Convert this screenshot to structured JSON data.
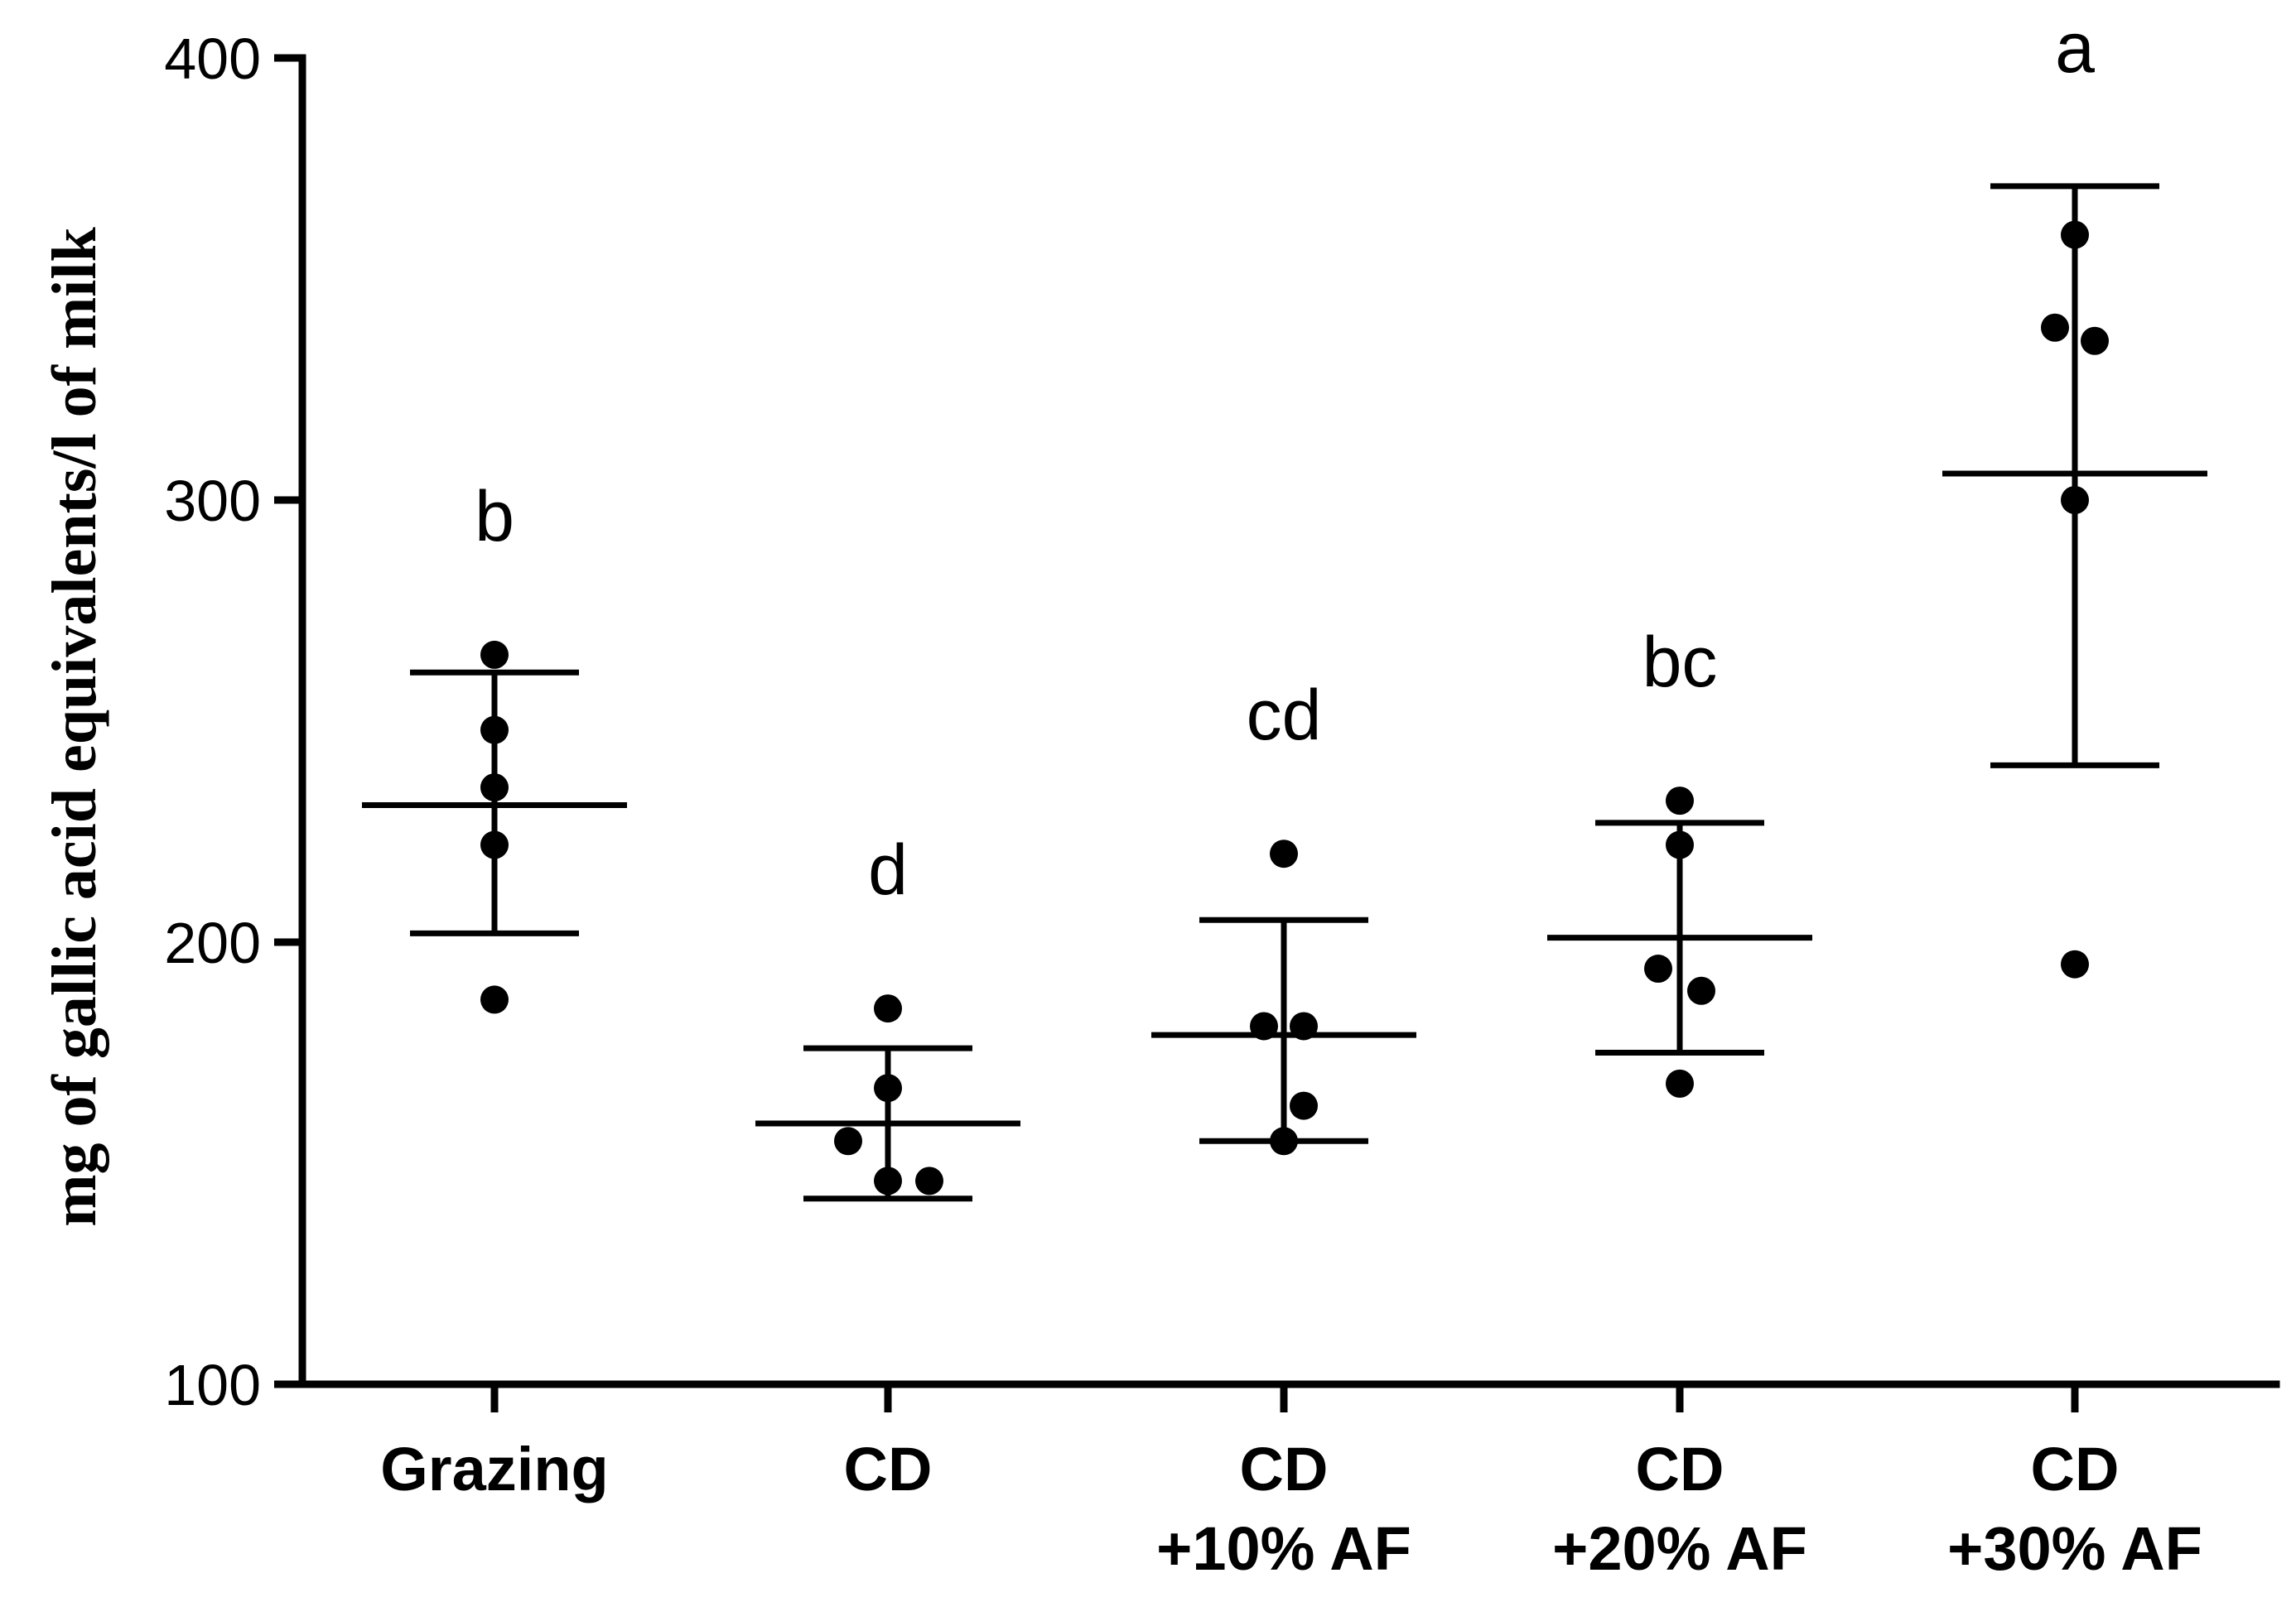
{
  "chart_data": {
    "type": "scatter",
    "title": "",
    "xlabel": "",
    "ylabel": "mg of gallic acid equivalents/l of milk",
    "ylim": [
      100,
      400
    ],
    "yticks": [
      100,
      200,
      300,
      400
    ],
    "grid": false,
    "categories": [
      {
        "lines": [
          "Grazing"
        ]
      },
      {
        "lines": [
          "CD"
        ]
      },
      {
        "lines": [
          "CD",
          "+10% AF"
        ]
      },
      {
        "lines": [
          "CD",
          "+20% AF"
        ]
      },
      {
        "lines": [
          "CD",
          "+30% AF"
        ]
      }
    ],
    "groups": [
      {
        "points": [
          265,
          248,
          235,
          222,
          187
        ],
        "mean": 231,
        "sd_low": 202,
        "sd_high": 261,
        "letter": "b"
      },
      {
        "points": [
          185,
          167,
          155,
          146,
          146
        ],
        "mean": 159,
        "sd_low": 142,
        "sd_high": 176,
        "letter": "d"
      },
      {
        "points": [
          220,
          181,
          181,
          163,
          155
        ],
        "mean": 179,
        "sd_low": 155,
        "sd_high": 205,
        "letter": "cd"
      },
      {
        "points": [
          232,
          222,
          194,
          189,
          168
        ],
        "mean": 201,
        "sd_low": 175,
        "sd_high": 227,
        "letter": "bc"
      },
      {
        "points": [
          360,
          339,
          336,
          300,
          195
        ],
        "mean": 306,
        "sd_low": 240,
        "sd_high": 371,
        "letter": "a"
      }
    ]
  }
}
